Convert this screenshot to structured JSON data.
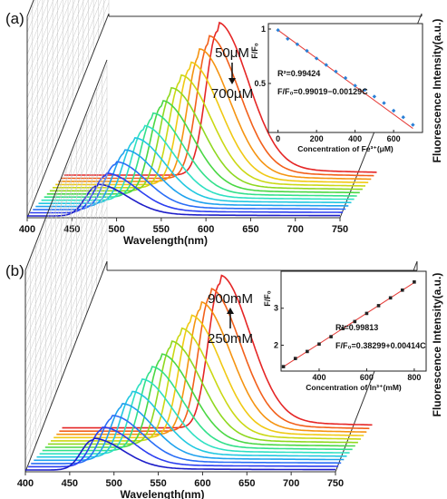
{
  "chart_data": [
    {
      "type": "line",
      "panel_label": "(a)",
      "xlabel": "Wavelength(nm)",
      "ylabel": "Fluorescence Intensity(a.u.)",
      "x_ticks": [
        400,
        450,
        500,
        550,
        600,
        650,
        700,
        750
      ],
      "xlim": [
        400,
        750
      ],
      "series_count": 14,
      "peak_start_nm": 478,
      "peak_end_nm": 572,
      "series_colors": [
        "#1d1dc8",
        "#2c3ff0",
        "#2a6ef6",
        "#1fa2ee",
        "#22c8e0",
        "#2fe0c2",
        "#33e08a",
        "#4ad744",
        "#8fd820",
        "#cbd815",
        "#f0c914",
        "#f59412",
        "#f2601b",
        "#e52626"
      ],
      "annotation_top": "50μM",
      "annotation_bottom": "700μM",
      "inset": {
        "type": "scatter",
        "xlabel": "Concentration of Fe³⁺(μM)",
        "ylabel": "F/F₀",
        "x_ticks": [
          0,
          200,
          400,
          600
        ],
        "y_ticks": [
          0.5,
          1
        ],
        "xlim": [
          -50,
          750
        ],
        "ylim": [
          0.05,
          1.05
        ],
        "x": [
          0,
          50,
          100,
          150,
          200,
          250,
          300,
          350,
          400,
          450,
          500,
          550,
          600,
          650,
          700
        ],
        "y": [
          0.99,
          0.91,
          0.86,
          0.8,
          0.73,
          0.67,
          0.61,
          0.55,
          0.48,
          0.44,
          0.38,
          0.32,
          0.25,
          0.19,
          0.12
        ],
        "fit": {
          "intercept": 0.99019,
          "slope": -0.00129
        },
        "r2_text": "R²=0.99424",
        "equation_text": "F/F₀=0.99019−0.00129C",
        "marker": "diamond",
        "marker_color": "#2a7fd6",
        "line_color": "#e53935"
      }
    },
    {
      "type": "line",
      "panel_label": "(b)",
      "xlabel": "Wavelength(nm)",
      "ylabel": "Fluorescence Intensity(a.u.)",
      "x_ticks": [
        400,
        450,
        500,
        550,
        600,
        650,
        700,
        750
      ],
      "xlim": [
        400,
        750
      ],
      "series_count": 14,
      "peak_start_nm": 476,
      "peak_end_nm": 578,
      "series_colors": [
        "#1d1dc8",
        "#2c3ff0",
        "#2a6ef6",
        "#1fa2ee",
        "#22c8e0",
        "#2fe0c2",
        "#33e08a",
        "#4ad744",
        "#8fd820",
        "#cbd815",
        "#f0c914",
        "#f59412",
        "#f2601b",
        "#e52626"
      ],
      "annotation_top": "900mM",
      "annotation_bottom": "250mM",
      "inset": {
        "type": "scatter",
        "xlabel": "Concentration of In³⁺(mM)",
        "ylabel": "F/F₀",
        "x_ticks": [
          400,
          600,
          800
        ],
        "y_ticks": [
          2,
          3
        ],
        "xlim": [
          240,
          850
        ],
        "ylim": [
          1.3,
          4.0
        ],
        "x": [
          250,
          300,
          350,
          400,
          450,
          500,
          550,
          600,
          650,
          700,
          750,
          800
        ],
        "y": [
          1.42,
          1.64,
          1.83,
          2.03,
          2.23,
          2.45,
          2.64,
          2.86,
          3.07,
          3.28,
          3.49,
          3.71
        ],
        "fit": {
          "intercept": 0.38299,
          "slope": 0.00414
        },
        "r2_text": "R²=0.99813",
        "equation_text": "F/F₀=0.38299+0.00414C",
        "marker": "square",
        "marker_color": "#222222",
        "line_color": "#e53935"
      }
    }
  ]
}
